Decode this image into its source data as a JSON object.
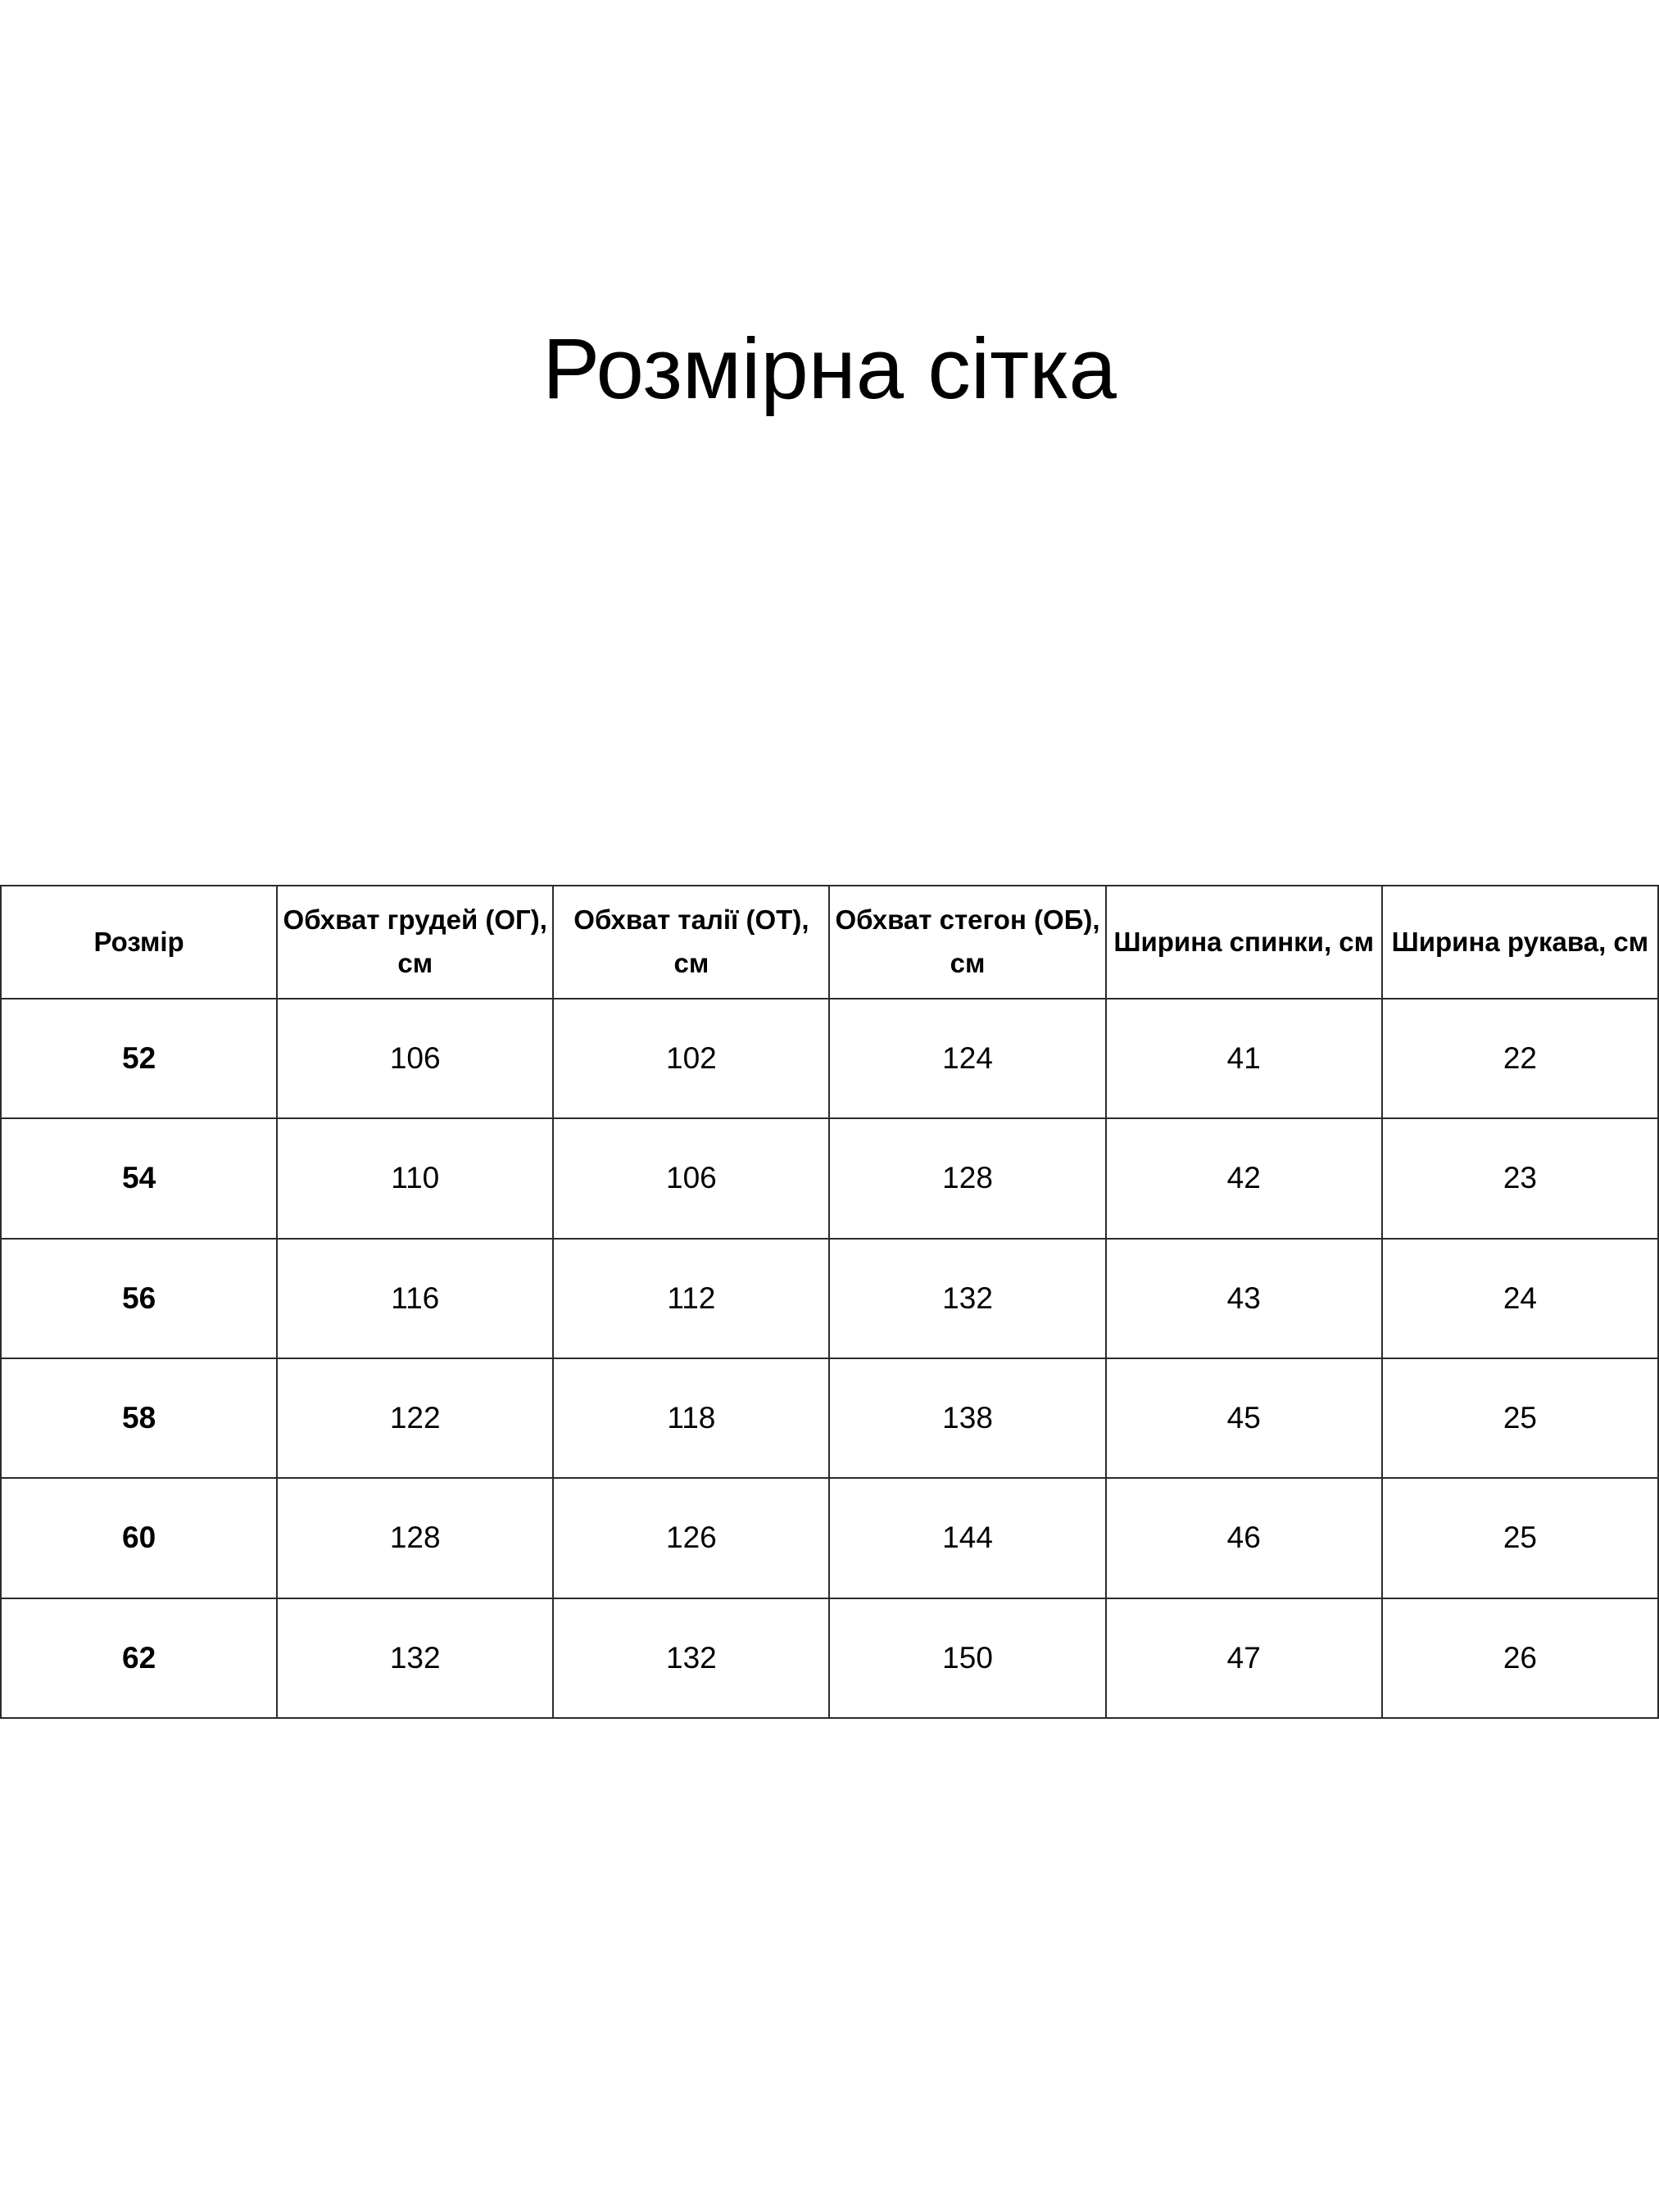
{
  "title": "Розмірна сітка",
  "size_table": {
    "header": [
      "Розмір",
      "Обхват грудей (ОГ), см",
      "Обхват талії (ОТ), см",
      "Обхват стегон (ОБ), см",
      "Ширина спинки, см",
      "Ширина рукава, см"
    ],
    "rows": [
      [
        "52",
        "106",
        "102",
        "124",
        "41",
        "22"
      ],
      [
        "54",
        "110",
        "106",
        "128",
        "42",
        "23"
      ],
      [
        "56",
        "116",
        "112",
        "132",
        "43",
        "24"
      ],
      [
        "58",
        "122",
        "118",
        "138",
        "45",
        "25"
      ],
      [
        "60",
        "128",
        "126",
        "144",
        "46",
        "25"
      ],
      [
        "62",
        "132",
        "132",
        "150",
        "47",
        "26"
      ]
    ]
  },
  "colors": {
    "background": "#ffffff",
    "text": "#000000",
    "table_border": "#2b2b2b"
  }
}
